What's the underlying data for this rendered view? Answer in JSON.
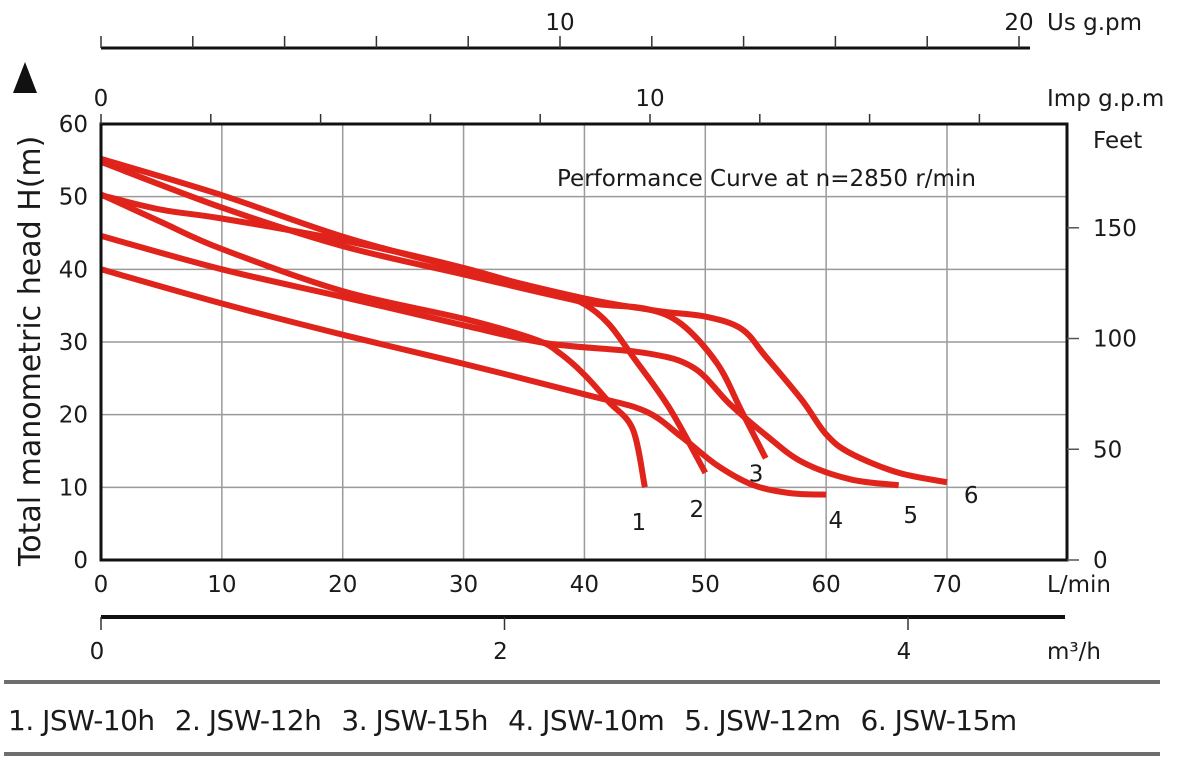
{
  "chart_data": {
    "type": "line",
    "title": "Performance Curve at n=2850 r/min",
    "xlabel": "L/min",
    "ylabel": "Total manometric head H(m)",
    "xlim": [
      0,
      80
    ],
    "ylim": [
      0,
      60
    ],
    "grid": true,
    "x_ticks": [
      "0",
      "10",
      "20",
      "30",
      "40",
      "50",
      "60",
      "70"
    ],
    "y_ticks": [
      "0",
      "10",
      "20",
      "30",
      "40",
      "50",
      "60"
    ],
    "secondary_axes": {
      "us_gpm": {
        "label": "Us  g.pm",
        "tick_labels": [
          "10",
          "20"
        ],
        "ticks": [
          0,
          2,
          4,
          6,
          8,
          10,
          12,
          14,
          16,
          18,
          20
        ]
      },
      "imp_gpm": {
        "label": "Imp  g.p.m",
        "tick_labels": [
          "0",
          "10"
        ],
        "ticks": [
          0,
          2,
          4,
          6,
          8,
          10,
          12,
          14,
          16
        ]
      },
      "feet": {
        "label": "Feet",
        "tick_labels": [
          "0",
          "50",
          "100",
          "150"
        ]
      },
      "m3h": {
        "label": "m³/h",
        "tick_labels": [
          "0",
          "2",
          "4"
        ]
      }
    },
    "series": [
      {
        "name": "JSW-10h",
        "id": "1",
        "color": "#e0231b",
        "points": [
          [
            0,
            50.2
          ],
          [
            5,
            48.2
          ],
          [
            10,
            47
          ],
          [
            20,
            44
          ],
          [
            30,
            40.2
          ],
          [
            38,
            36.3
          ],
          [
            40,
            35.2
          ],
          [
            42,
            32.5
          ],
          [
            44,
            28
          ],
          [
            47,
            21
          ],
          [
            50,
            12
          ]
        ]
      },
      {
        "name": "JSW-12h",
        "id": "2",
        "color": "#e0231b",
        "points": [
          [
            0,
            50.3
          ],
          [
            5,
            46.5
          ],
          [
            10,
            42.8
          ],
          [
            20,
            37
          ],
          [
            30,
            33.2
          ],
          [
            36,
            30.3
          ],
          [
            38,
            28.4
          ],
          [
            40,
            25.5
          ],
          [
            42,
            21.8
          ],
          [
            44,
            18
          ],
          [
            45,
            10
          ]
        ]
      },
      {
        "name": "JSW-15h",
        "id": "3",
        "color": "#e0231b",
        "points": [
          [
            0,
            54.8
          ],
          [
            10,
            48.5
          ],
          [
            20,
            43.2
          ],
          [
            30,
            39.3
          ],
          [
            40,
            35.5
          ],
          [
            45,
            34.6
          ],
          [
            48,
            32.5
          ],
          [
            51,
            27
          ],
          [
            53,
            20.5
          ],
          [
            55,
            14
          ]
        ]
      },
      {
        "name": "JSW-10m",
        "id": "4",
        "color": "#e0231b",
        "points": [
          [
            0,
            40
          ],
          [
            10,
            35.3
          ],
          [
            20,
            31
          ],
          [
            30,
            27
          ],
          [
            40,
            22.8
          ],
          [
            45,
            20.5
          ],
          [
            48,
            17
          ],
          [
            51,
            13
          ],
          [
            54,
            10.3
          ],
          [
            57,
            9.2
          ],
          [
            60,
            9
          ]
        ]
      },
      {
        "name": "JSW-12m",
        "id": "5",
        "color": "#e0231b",
        "points": [
          [
            0,
            44.6
          ],
          [
            10,
            40
          ],
          [
            20,
            36.2
          ],
          [
            30,
            32.3
          ],
          [
            37,
            29.8
          ],
          [
            45,
            28.5
          ],
          [
            49,
            26.5
          ],
          [
            52,
            21.5
          ],
          [
            55,
            17.2
          ],
          [
            58,
            13.5
          ],
          [
            62,
            11.1
          ],
          [
            66,
            10.3
          ]
        ]
      },
      {
        "name": "JSW-15m",
        "id": "6",
        "color": "#e0231b",
        "points": [
          [
            0,
            55.2
          ],
          [
            10,
            50.2
          ],
          [
            20,
            44.5
          ],
          [
            30,
            40
          ],
          [
            40,
            36
          ],
          [
            46,
            34.3
          ],
          [
            50,
            33.5
          ],
          [
            53,
            31.8
          ],
          [
            55,
            28
          ],
          [
            58,
            22
          ],
          [
            60,
            17.3
          ],
          [
            62,
            14.7
          ],
          [
            66,
            12
          ],
          [
            70,
            10.7
          ]
        ]
      }
    ],
    "curve_labels": [
      "1",
      "2",
      "3",
      "4",
      "5",
      "6"
    ]
  },
  "legend": {
    "items": [
      "1. JSW-10h",
      "2. JSW-12h",
      "3. JSW-15h",
      "4. JSW-10m",
      "5. JSW-12m",
      "6. JSW-15m"
    ]
  },
  "colors": {
    "curve": "#e0231b",
    "grid": "#9a9a9a",
    "axis": "#111111"
  }
}
